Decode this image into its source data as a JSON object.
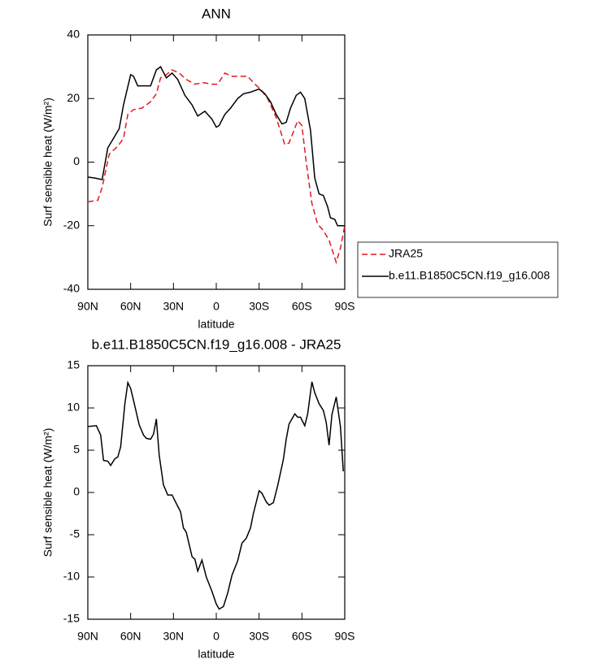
{
  "chart_data": [
    {
      "type": "line",
      "title": "ANN",
      "xlabel": "latitude",
      "ylabel": "Surf sensible heat (W/m²)",
      "xlim": [
        90,
        -90
      ],
      "ylim": [
        -40,
        40
      ],
      "xticks": [
        {
          "value": 90,
          "label": "90N"
        },
        {
          "value": 60,
          "label": "60N"
        },
        {
          "value": 30,
          "label": "30N"
        },
        0,
        {
          "value": -30,
          "label": "30S"
        },
        {
          "value": -60,
          "label": "60S"
        },
        {
          "value": -90,
          "label": "90S"
        }
      ],
      "yticks": [
        -40,
        -20,
        0,
        20,
        40
      ],
      "legend": "right",
      "series": [
        {
          "name": "JRA25",
          "color": "#e41a1c",
          "linestyle": "dashed",
          "x": [
            90,
            83,
            80,
            75,
            69,
            65,
            62,
            58,
            52,
            46,
            42,
            39,
            35,
            31,
            26,
            21,
            15,
            9,
            3,
            -1,
            -6,
            -11,
            -17,
            -22,
            -27,
            -31,
            -36,
            -42,
            -48,
            -51,
            -57,
            -60,
            -63,
            -67,
            -71,
            -75,
            -79,
            -84,
            -87,
            -90
          ],
          "values": [
            -12.5,
            -12,
            -8,
            2.5,
            5,
            7.5,
            15,
            16.5,
            17,
            19,
            21.5,
            26.5,
            27.5,
            29,
            28,
            26,
            24.5,
            25,
            24.5,
            24.5,
            28,
            27,
            27,
            27,
            24.5,
            23,
            20,
            14,
            5.5,
            6,
            13,
            11.5,
            0,
            -13,
            -19.5,
            -21.5,
            -24.5,
            -31.5,
            -27,
            -20
          ]
        },
        {
          "name": "b.e11.B1850C5CN.f19_g16.008",
          "color": "#000000",
          "linestyle": "solid",
          "x": [
            90,
            85,
            80,
            76,
            72,
            68,
            65,
            60,
            58,
            55,
            50,
            46,
            42,
            39,
            35,
            31,
            27,
            22,
            17,
            13,
            8,
            3,
            0,
            -2,
            -6,
            -10,
            -15,
            -19,
            -24,
            -30,
            -34,
            -38,
            -42,
            -46,
            -49,
            -52,
            -56,
            -59,
            -62,
            -66,
            -69,
            -72,
            -75,
            -78,
            -80,
            -83,
            -85,
            -90
          ],
          "values": [
            -4.7,
            -5,
            -5.5,
            4.5,
            7.5,
            10.5,
            18,
            27.5,
            27,
            24,
            24,
            24,
            29,
            30,
            26.5,
            28,
            26,
            21,
            18,
            14.5,
            16,
            13.5,
            11,
            11.5,
            15,
            17,
            20,
            21.5,
            22,
            23,
            21.5,
            19,
            15,
            12,
            12.5,
            17,
            21,
            22,
            20,
            10,
            -5,
            -10,
            -10.5,
            -14,
            -17.5,
            -18,
            -20,
            -20
          ]
        }
      ]
    },
    {
      "type": "line",
      "title": "b.e11.B1850C5CN.f19_g16.008 - JRA25",
      "xlabel": "latitude",
      "ylabel": "Surf sensible heat (W/m²)",
      "xlim": [
        90,
        -90
      ],
      "ylim": [
        -15,
        15
      ],
      "xticks": [
        {
          "value": 90,
          "label": "90N"
        },
        {
          "value": 60,
          "label": "60N"
        },
        {
          "value": 30,
          "label": "30N"
        },
        0,
        {
          "value": -30,
          "label": "30S"
        },
        {
          "value": -60,
          "label": "60S"
        },
        {
          "value": -90,
          "label": "90S"
        }
      ],
      "yticks": [
        -15,
        -10,
        -5,
        0,
        5,
        10,
        15
      ],
      "series": [
        {
          "color": "#000000",
          "linestyle": "solid",
          "x": [
            90,
            84,
            81,
            79,
            76,
            74,
            71,
            69,
            67,
            64,
            62,
            60,
            58,
            54,
            51,
            49,
            46,
            44,
            42,
            40,
            37,
            34,
            31,
            28,
            25,
            23,
            21,
            17,
            15,
            13,
            10,
            7,
            3,
            0,
            -2,
            -5,
            -8,
            -11,
            -15,
            -18,
            -21,
            -24,
            -26,
            -30,
            -32,
            -35,
            -37,
            -40,
            -43,
            -47,
            -49,
            -51,
            -55,
            -57,
            -59,
            -62,
            -64,
            -67,
            -69,
            -72,
            -75,
            -77,
            -79,
            -81,
            -84,
            -87,
            -89
          ],
          "values": [
            7.8,
            7.9,
            6.8,
            3.8,
            3.7,
            3.2,
            4,
            4.2,
            5.4,
            10.5,
            13,
            12.3,
            10.9,
            8,
            6.8,
            6.4,
            6.3,
            6.9,
            8.7,
            4.4,
            0.9,
            -0.3,
            -0.3,
            -1.3,
            -2.3,
            -4.2,
            -4.7,
            -7.6,
            -7.9,
            -9.3,
            -8,
            -10,
            -11.7,
            -13.2,
            -13.8,
            -13.5,
            -11.9,
            -9.8,
            -8.1,
            -6,
            -5.4,
            -4.2,
            -2.5,
            0.2,
            -0.1,
            -1.1,
            -1.5,
            -1.2,
            0.8,
            3.9,
            6.3,
            8.1,
            9.3,
            8.9,
            8.9,
            7.9,
            9.3,
            13.1,
            11.8,
            10.5,
            9.7,
            8.3,
            5.6,
            9.2,
            11.3,
            7.8,
            2.5
          ]
        }
      ]
    }
  ]
}
